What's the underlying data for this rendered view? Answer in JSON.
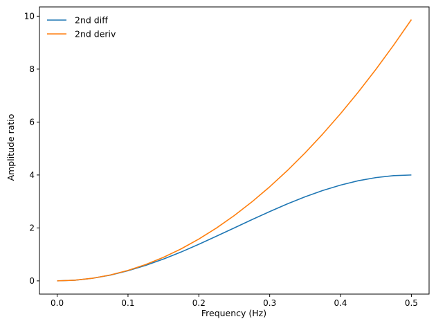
{
  "chart_data": {
    "type": "line",
    "title": "",
    "xlabel": "Frequency (Hz)",
    "ylabel": "Amplitude ratio",
    "xlim": [
      -0.025,
      0.525
    ],
    "ylim": [
      -0.5,
      10.35
    ],
    "xticks": [
      0.0,
      0.1,
      0.2,
      0.3,
      0.4,
      0.5
    ],
    "xtick_labels": [
      "0.0",
      "0.1",
      "0.2",
      "0.3",
      "0.4",
      "0.5"
    ],
    "yticks": [
      0,
      2,
      4,
      6,
      8,
      10
    ],
    "ytick_labels": [
      "0",
      "2",
      "4",
      "6",
      "8",
      "10"
    ],
    "grid": false,
    "legend_position": "top-left",
    "x": [
      0.0,
      0.025,
      0.05,
      0.075,
      0.1,
      0.125,
      0.15,
      0.175,
      0.2,
      0.225,
      0.25,
      0.275,
      0.3,
      0.325,
      0.35,
      0.375,
      0.4,
      0.425,
      0.45,
      0.475,
      0.5
    ],
    "series": [
      {
        "name": "2nd diff",
        "color": "#1f77b4",
        "values": [
          0.0,
          0.0246,
          0.0979,
          0.2178,
          0.382,
          0.5858,
          0.824,
          1.0902,
          1.382,
          1.6889,
          2.0,
          2.3129,
          2.618,
          2.9098,
          3.1756,
          3.4142,
          3.618,
          3.7822,
          3.9021,
          3.9754,
          4.0
        ]
      },
      {
        "name": "2nd deriv",
        "color": "#ff7f0e",
        "values": [
          0.0,
          0.0247,
          0.0987,
          0.2221,
          0.3948,
          0.6169,
          0.8883,
          1.2091,
          1.5791,
          1.9986,
          2.4674,
          2.9855,
          3.5531,
          4.1699,
          4.8361,
          5.5517,
          6.3165,
          7.1309,
          7.9944,
          8.9076,
          9.8696
        ]
      }
    ]
  }
}
